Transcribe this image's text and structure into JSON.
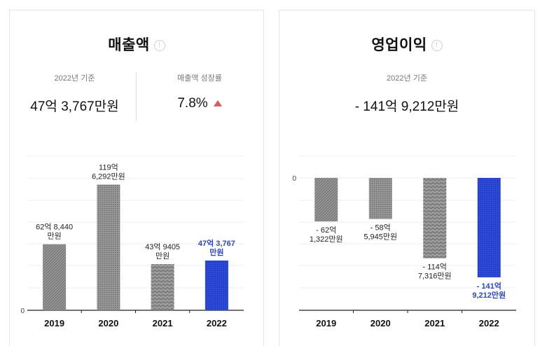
{
  "info_glyph": "!",
  "revenue": {
    "title": "매출액",
    "stat_left_label": "2022년 기준",
    "stat_left_value": "47억 3,767만원",
    "stat_right_label": "매출액 성장률",
    "stat_right_value": "7.8%",
    "trend_icon": "up-triangle-icon",
    "trend_color": "#e05a5a"
  },
  "operating_profit": {
    "title": "영업이익",
    "stat_label": "2022년 기준",
    "stat_value": "- 141억 9,212만원"
  },
  "colors": {
    "gray_bar": "#8c8c8c",
    "highlight_bar": "#2240cc",
    "highlight_text": "#2b46c8"
  },
  "chart_data": [
    {
      "type": "bar",
      "title": "매출액",
      "categories": [
        "2019",
        "2020",
        "2021",
        "2022"
      ],
      "values": [
        6284.4,
        11962.92,
        4394.05,
        4737.67
      ],
      "data_labels": [
        [
          "62억 8,440",
          "만원"
        ],
        [
          "119억",
          "6,292만원"
        ],
        [
          "43억 9405",
          "만원"
        ],
        [
          "47억 3,767",
          "만원"
        ]
      ],
      "highlight_index": 3,
      "y_tick_labels": [
        "0"
      ],
      "ylim": [
        0,
        13000
      ],
      "grid": true
    },
    {
      "type": "bar",
      "title": "영업이익",
      "categories": [
        "2019",
        "2020",
        "2021",
        "2022"
      ],
      "values": [
        -6213.22,
        -5859.45,
        -11473.16,
        -14192.12
      ],
      "data_labels": [
        [
          "- 62억",
          "1,322만원"
        ],
        [
          "- 58억",
          "5,945만원"
        ],
        [
          "- 114억",
          "7,316만원"
        ],
        [
          "- 141억",
          "9,212만원"
        ]
      ],
      "highlight_index": 3,
      "y_tick_labels": [
        "0"
      ],
      "ylim": [
        -15000,
        0
      ],
      "grid": true
    }
  ]
}
